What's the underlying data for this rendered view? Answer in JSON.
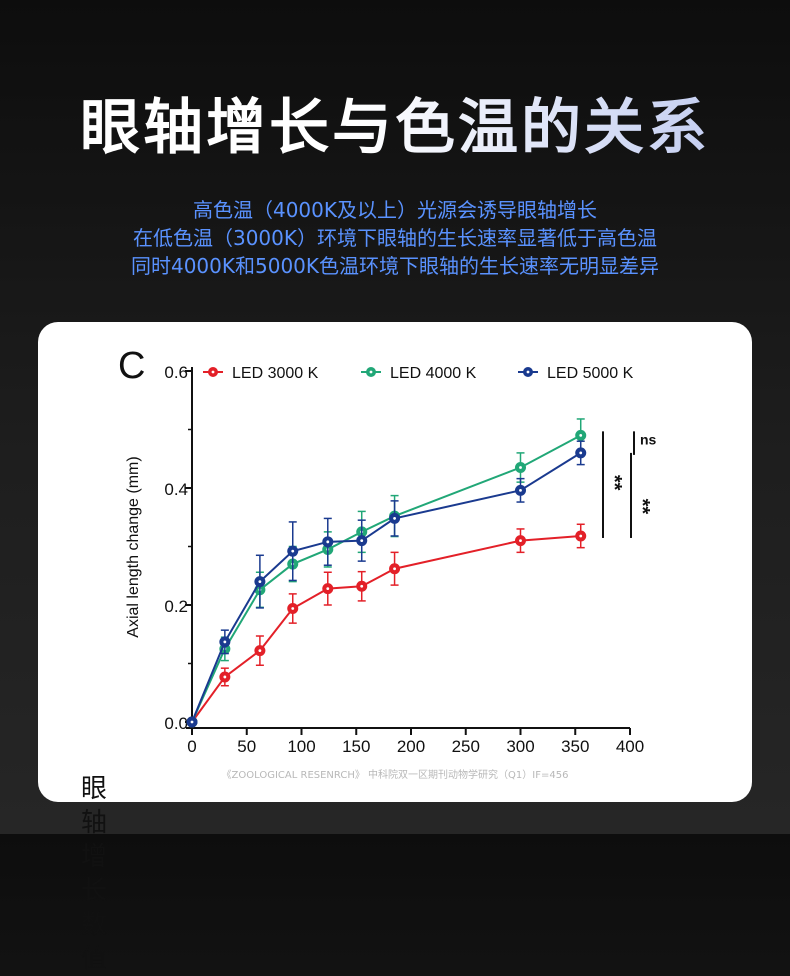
{
  "header": {
    "title": "眼轴增长与色温的关系",
    "subtitle_lines": [
      "高色温（4000K及以上）光源会诱导眼轴增长",
      "在低色温（3000K）环境下眼轴的生长速率显著低于高色温",
      "同时4000K和5000K色温环境下眼轴的生长速率无明显差异"
    ]
  },
  "figure": {
    "panel_letter": "C",
    "side_label": "眼轴增长数值",
    "source_note": "《ZOOLOGICAL RESENRCH》 中科院双一区期刊动物学研究（Q1）IF=456"
  },
  "chart_data": {
    "type": "line",
    "ylabel": "Axial length change (mm)",
    "xlabel": "",
    "xlim": [
      0,
      400
    ],
    "ylim": [
      0,
      0.6
    ],
    "x_ticks": [
      0,
      50,
      100,
      150,
      200,
      250,
      300,
      350,
      400
    ],
    "y_ticks": [
      0.0,
      0.2,
      0.4,
      0.6
    ],
    "x_tick_labels": [
      "0",
      "50",
      "100",
      "150",
      "200",
      "250",
      "300",
      "350",
      "400"
    ],
    "y_tick_labels": [
      "0.0",
      "0.2",
      "0.4",
      "0.6"
    ],
    "grid": false,
    "legend_position": "top",
    "series": [
      {
        "name": "LED 3000 K",
        "color": "#e32028",
        "x": [
          0,
          30,
          62,
          92,
          124,
          155,
          185,
          300,
          355
        ],
        "y": [
          0.0,
          0.077,
          0.122,
          0.194,
          0.228,
          0.232,
          0.262,
          0.31,
          0.318
        ],
        "err": [
          0,
          0.015,
          0.025,
          0.025,
          0.028,
          0.025,
          0.028,
          0.02,
          0.02
        ]
      },
      {
        "name": "LED 4000 K",
        "color": "#21a777",
        "x": [
          0,
          30,
          62,
          92,
          124,
          155,
          185,
          300,
          355
        ],
        "y": [
          0.0,
          0.125,
          0.226,
          0.27,
          0.295,
          0.325,
          0.352,
          0.435,
          0.49
        ],
        "err": [
          0,
          0.02,
          0.03,
          0.03,
          0.03,
          0.035,
          0.035,
          0.025,
          0.028
        ]
      },
      {
        "name": "LED 5000 K",
        "color": "#1a3a8f",
        "x": [
          0,
          30,
          62,
          92,
          124,
          155,
          185,
          300,
          355
        ],
        "y": [
          0.0,
          0.137,
          0.24,
          0.292,
          0.308,
          0.31,
          0.348,
          0.396,
          0.46
        ],
        "err": [
          0,
          0.02,
          0.045,
          0.05,
          0.04,
          0.035,
          0.03,
          0.02,
          0.02
        ]
      }
    ],
    "annotations": [
      "**",
      "**",
      "ns"
    ]
  }
}
